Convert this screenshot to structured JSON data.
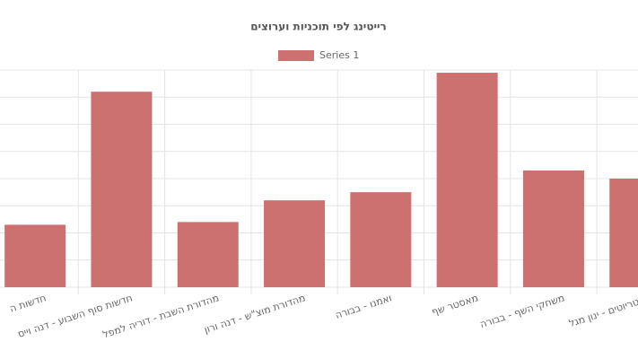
{
  "chart_data": {
    "type": "bar",
    "title": "רייטינג לפי תוכניות וערוצים",
    "categories": [
      "חדשות ה",
      "חדשות סוף השבוע - דנה וייס",
      "מהדורת השבת - דוריה למפל",
      "מהדורת מוצ\"ש - דנה ורון",
      "ואמנו - בבורה",
      "מאסטר שף",
      "משחקי השף - בבורה",
      "הפטריוטים - ינון מגל"
    ],
    "series": [
      {
        "name": "Series 1",
        "color": "#cd7070",
        "values": [
          2.3,
          7.2,
          2.4,
          3.2,
          3.5,
          7.9,
          4.3,
          4.0
        ]
      }
    ],
    "ylim": [
      0,
      8
    ],
    "yticks": [
      0,
      1,
      2,
      3,
      4,
      5,
      6,
      7,
      8
    ],
    "grid": true
  }
}
